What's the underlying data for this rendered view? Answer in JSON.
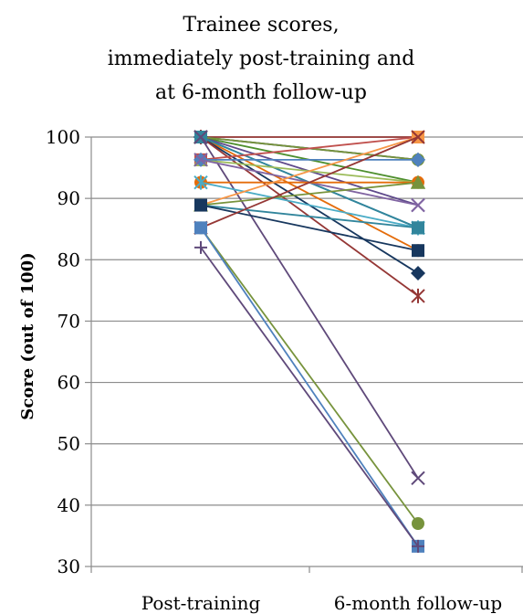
{
  "chart_data": {
    "type": "line",
    "title_lines": [
      "Trainee scores,",
      "immediately post-training and",
      "at 6-month follow-up"
    ],
    "ylabel": "Score (out of 100)",
    "xlabel": "",
    "categories": [
      "Post-training",
      "6-month follow-up"
    ],
    "ylim": [
      30,
      100
    ],
    "yticks": [
      30,
      40,
      50,
      60,
      70,
      80,
      90,
      100
    ],
    "grid": true,
    "legend": "none",
    "series": [
      {
        "values": [
          100,
          100
        ],
        "color": "#953735",
        "marker": "square"
      },
      {
        "values": [
          100,
          96.3
        ],
        "color": "#1f3864",
        "marker": "diamond"
      },
      {
        "values": [
          100,
          92.6
        ],
        "color": "#4e8f2e",
        "marker": "triangle"
      },
      {
        "values": [
          100,
          88.9
        ],
        "color": "#5f4a8b",
        "marker": "x"
      },
      {
        "values": [
          100,
          85.2
        ],
        "color": "#1f7a99",
        "marker": "asterisk"
      },
      {
        "values": [
          100,
          81.5
        ],
        "color": "#e46c0a",
        "marker": "circle"
      },
      {
        "values": [
          100,
          77.8
        ],
        "color": "#17375e",
        "marker": "diamond"
      },
      {
        "values": [
          100,
          74.1
        ],
        "color": "#953735",
        "marker": "asterisk"
      },
      {
        "values": [
          100,
          96.3
        ],
        "color": "#77933c",
        "marker": "circle"
      },
      {
        "values": [
          100,
          85.2
        ],
        "color": "#31859c",
        "marker": "square"
      },
      {
        "values": [
          100,
          44.4
        ],
        "color": "#5f497a",
        "marker": "x"
      },
      {
        "values": [
          96.3,
          100
        ],
        "color": "#c0504d",
        "marker": "square"
      },
      {
        "values": [
          96.3,
          92.6
        ],
        "color": "#9bbb59",
        "marker": "triangle"
      },
      {
        "values": [
          96.3,
          96.3
        ],
        "color": "#4f81bd",
        "marker": "diamond"
      },
      {
        "values": [
          96.3,
          88.9
        ],
        "color": "#8064a2",
        "marker": "x"
      },
      {
        "values": [
          92.6,
          92.6
        ],
        "color": "#e46c0a",
        "marker": "circle"
      },
      {
        "values": [
          92.6,
          85.2
        ],
        "color": "#4bacc6",
        "marker": "asterisk"
      },
      {
        "values": [
          88.9,
          100
        ],
        "color": "#f79646",
        "marker": "square"
      },
      {
        "values": [
          88.9,
          85.2
        ],
        "color": "#31859c",
        "marker": "square"
      },
      {
        "values": [
          88.9,
          92.6
        ],
        "color": "#77933c",
        "marker": "triangle"
      },
      {
        "values": [
          88.9,
          81.5
        ],
        "color": "#17375e",
        "marker": "square"
      },
      {
        "values": [
          85.2,
          100
        ],
        "color": "#953735",
        "marker": "x"
      },
      {
        "values": [
          85.2,
          37.0
        ],
        "color": "#77933c",
        "marker": "circle"
      },
      {
        "values": [
          85.2,
          33.3
        ],
        "color": "#4f81bd",
        "marker": "square"
      },
      {
        "values": [
          82.0,
          33.3
        ],
        "color": "#5f497a",
        "marker": "plus"
      }
    ]
  }
}
